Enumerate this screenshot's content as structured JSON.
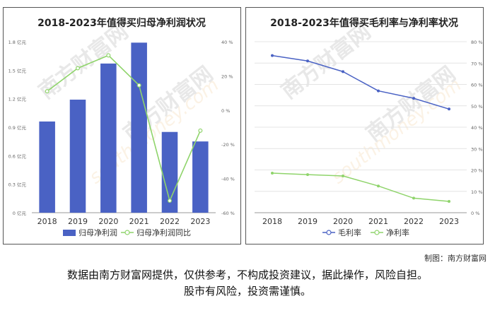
{
  "chart_data": [
    {
      "type": "bar",
      "title": "2018-2023年值得买归母净利润状况",
      "categories": [
        "2018",
        "2019",
        "2020",
        "2021",
        "2022",
        "2023"
      ],
      "series": [
        {
          "name": "归母净利润",
          "type": "bar",
          "axis": "left",
          "values": [
            0.96,
            1.19,
            1.57,
            1.79,
            0.85,
            0.75
          ]
        },
        {
          "name": "归母净利润同比",
          "type": "line",
          "axis": "right",
          "values": [
            11,
            24.5,
            32,
            14.5,
            -53,
            -12
          ]
        }
      ],
      "y_left": {
        "ticks": [
          "0 亿元",
          "0.3 亿元",
          "0.6 亿元",
          "0.9 亿元",
          "1.2 亿元",
          "1.5 亿元",
          "1.8 亿元"
        ],
        "ylim": [
          0,
          1.8
        ]
      },
      "y_right": {
        "ticks": [
          "-60 %",
          "-40 %",
          "-20 %",
          "0 %",
          "20 %",
          "40 %"
        ],
        "ylim": [
          -60,
          40
        ]
      },
      "colors": {
        "bar": "#4a62c4",
        "line": "#8fd46b"
      },
      "legend": "bottom",
      "grid": false
    },
    {
      "type": "line",
      "title": "2018-2023年值得买毛利率与净利率状况",
      "categories": [
        "2018",
        "2019",
        "2020",
        "2021",
        "2022",
        "2023"
      ],
      "series": [
        {
          "name": "毛利率",
          "values": [
            73.5,
            71,
            66,
            57,
            53.5,
            48.5
          ]
        },
        {
          "name": "净利率",
          "values": [
            18.5,
            17.8,
            17.2,
            12.5,
            6.8,
            5.3
          ]
        }
      ],
      "y_right": {
        "ticks": [
          "0 %",
          "10 %",
          "20 %",
          "30 %",
          "40 %",
          "50 %",
          "60 %",
          "70 %",
          "80 %"
        ],
        "ylim": [
          0,
          80
        ]
      },
      "colors": {
        "gross": "#4a62c4",
        "net": "#8fd46b"
      },
      "legend": "bottom",
      "grid": true
    }
  ],
  "watermark": {
    "brand": "南方财富网",
    "site": "southmoney.com"
  },
  "credit": "制图：南方财富网",
  "disclaimer": {
    "line1": "数据由南方财富网提供，仅供参考，不构成投资建议，据此操作，风险自担。",
    "line2": "股市有风险，投资需谨慎。"
  }
}
